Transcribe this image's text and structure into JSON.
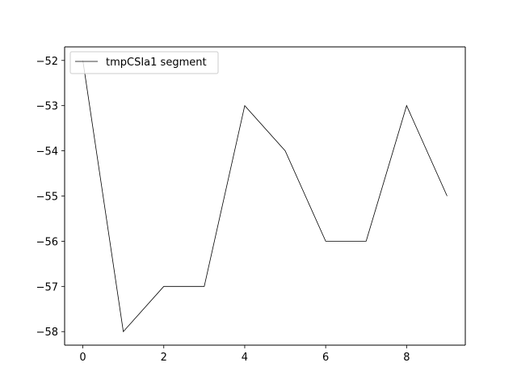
{
  "chart_data": {
    "type": "line",
    "title": "",
    "xlabel": "",
    "ylabel": "",
    "x": [
      0,
      1,
      2,
      3,
      4,
      5,
      6,
      7,
      8,
      9
    ],
    "series": [
      {
        "name": "tmpCSIa1 segment",
        "values": [
          -52,
          -58,
          -57,
          -57,
          -53,
          -54,
          -56,
          -56,
          -53,
          -55
        ],
        "color": "#000000"
      }
    ],
    "xlim": [
      -0.45,
      9.45
    ],
    "ylim": [
      -58.3,
      -51.7
    ],
    "xticks": [
      0,
      2,
      4,
      6,
      8
    ],
    "yticks": [
      -58,
      -57,
      -56,
      -55,
      -54,
      -53,
      -52
    ],
    "xtick_labels": [
      "0",
      "2",
      "4",
      "6",
      "8"
    ],
    "ytick_labels": [
      "−58",
      "−57",
      "−56",
      "−55",
      "−54",
      "−53",
      "−52"
    ],
    "grid": false,
    "legend_position": "upper-left"
  }
}
